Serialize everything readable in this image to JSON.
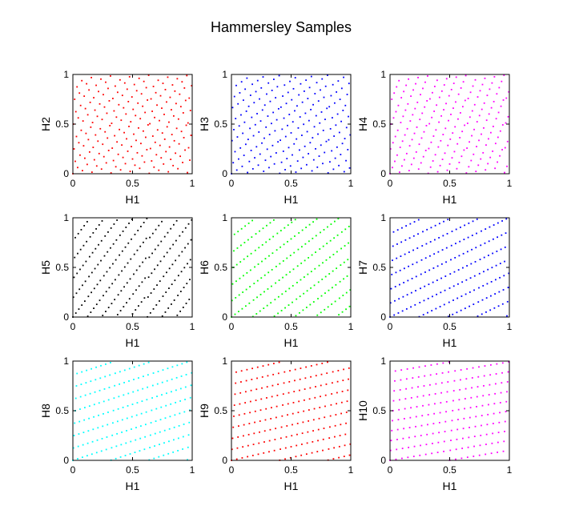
{
  "figure": {
    "title": "Hammersley Samples"
  },
  "chart_data": [
    {
      "type": "scatter",
      "xlabel": "H1",
      "ylabel": "H2",
      "color": "#ff0000",
      "base": 2,
      "xlim": [
        0,
        1
      ],
      "ylim": [
        0,
        1
      ],
      "xticks": [
        "0",
        "0.5",
        "1"
      ],
      "yticks": [
        "0",
        "0.5",
        "1"
      ],
      "grid": false
    },
    {
      "type": "scatter",
      "xlabel": "H1",
      "ylabel": "H3",
      "color": "#0000ff",
      "base": 3,
      "xlim": [
        0,
        1
      ],
      "ylim": [
        0,
        1
      ],
      "xticks": [
        "0",
        "0.5",
        "1"
      ],
      "yticks": [
        "0",
        "0.5",
        "1"
      ],
      "grid": false
    },
    {
      "type": "scatter",
      "xlabel": "H1",
      "ylabel": "H4",
      "color": "#ff00ff",
      "base": 4,
      "xlim": [
        0,
        1
      ],
      "ylim": [
        0,
        1
      ],
      "xticks": [
        "0",
        "0.5",
        "1"
      ],
      "yticks": [
        "0",
        "0.5",
        "1"
      ],
      "grid": false
    },
    {
      "type": "scatter",
      "xlabel": "H1",
      "ylabel": "H5",
      "color": "#000000",
      "base": 5,
      "xlim": [
        0,
        1
      ],
      "ylim": [
        0,
        1
      ],
      "xticks": [
        "0",
        "0.5",
        "1"
      ],
      "yticks": [
        "0",
        "0.5",
        "1"
      ],
      "grid": false
    },
    {
      "type": "scatter",
      "xlabel": "H1",
      "ylabel": "H6",
      "color": "#00ff00",
      "base": 6,
      "xlim": [
        0,
        1
      ],
      "ylim": [
        0,
        1
      ],
      "xticks": [
        "0",
        "0.5",
        "1"
      ],
      "yticks": [
        "0",
        "0.5",
        "1"
      ],
      "grid": false
    },
    {
      "type": "scatter",
      "xlabel": "H1",
      "ylabel": "H7",
      "color": "#0000ff",
      "base": 7,
      "xlim": [
        0,
        1
      ],
      "ylim": [
        0,
        1
      ],
      "xticks": [
        "0",
        "0.5",
        "1"
      ],
      "yticks": [
        "0",
        "0.5",
        "1"
      ],
      "grid": false
    },
    {
      "type": "scatter",
      "xlabel": "H1",
      "ylabel": "H8",
      "color": "#00ffff",
      "base": 8,
      "xlim": [
        0,
        1
      ],
      "ylim": [
        0,
        1
      ],
      "xticks": [
        "0",
        "0.5",
        "1"
      ],
      "yticks": [
        "0",
        "0.5",
        "1"
      ],
      "grid": false
    },
    {
      "type": "scatter",
      "xlabel": "H1",
      "ylabel": "H9",
      "color": "#ff0000",
      "base": 9,
      "xlim": [
        0,
        1
      ],
      "ylim": [
        0,
        1
      ],
      "xticks": [
        "0",
        "0.5",
        "1"
      ],
      "yticks": [
        "0",
        "0.5",
        "1"
      ],
      "grid": false
    },
    {
      "type": "scatter",
      "xlabel": "H1",
      "ylabel": "H10",
      "color": "#ff00ff",
      "base": 10,
      "xlim": [
        0,
        1
      ],
      "ylim": [
        0,
        1
      ],
      "xticks": [
        "0",
        "0.5",
        "1"
      ],
      "yticks": [
        "0",
        "0.5",
        "1"
      ],
      "grid": false
    }
  ]
}
